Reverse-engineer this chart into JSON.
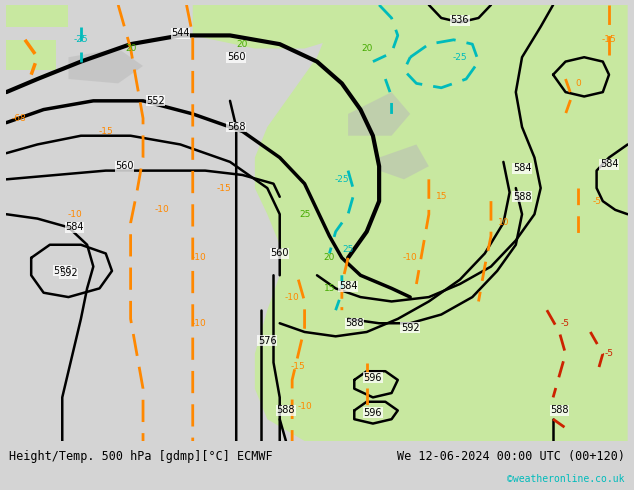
{
  "title_left": "Height/Temp. 500 hPa [gdmp][°C] ECMWF",
  "title_right": "We 12-06-2024 00:00 UTC (00+120)",
  "watermark": "©weatheronline.co.uk",
  "bg_light": "#e8e8e8",
  "bg_green": "#c8e8a0",
  "bg_grey": "#c0c0c0",
  "black_color": "#000000",
  "orange_color": "#ff8800",
  "cyan_color": "#00bbbb",
  "red_color": "#cc2200",
  "green_label_color": "#44aa00",
  "label_fontsize": 7.0,
  "title_fontsize": 8.5,
  "figsize": [
    6.34,
    4.9
  ],
  "dpi": 100
}
